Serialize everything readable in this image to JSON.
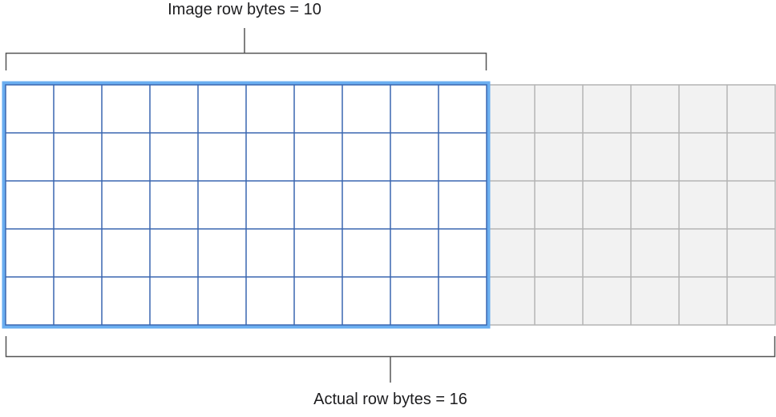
{
  "labels": {
    "image_row_bytes": "Image row bytes = 10",
    "actual_row_bytes": "Actual row bytes = 16"
  },
  "grid": {
    "rows": 5,
    "image_columns": 10,
    "total_columns": 16
  },
  "colors": {
    "image_grid_line": "#3a66b0",
    "image_highlight_border": "#6aaef0",
    "padding_fill": "#f2f2f2",
    "padding_grid_line": "#b4b4b4",
    "bracket": "#555555",
    "text": "#1d1d1f"
  }
}
